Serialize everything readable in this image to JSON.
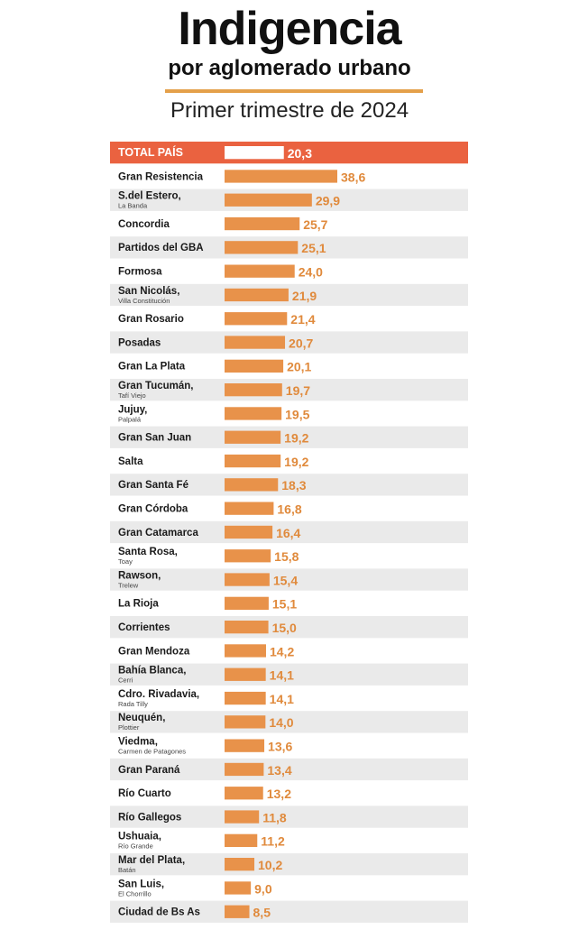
{
  "header": {
    "title": "Indigencia",
    "subtitle": "por aglomerado urbano",
    "period": "Primer trimestre de 2024"
  },
  "colors": {
    "bar": "#e8924a",
    "value": "#e08a3c",
    "total_row": "#ea6240",
    "row_shade": "#eaeaea"
  },
  "chart_data": {
    "type": "bar",
    "orientation": "horizontal",
    "title": "Indigencia",
    "subtitle": "por aglomerado urbano",
    "xlabel": "",
    "ylabel": "",
    "xlim": [
      0,
      40
    ],
    "grid": false,
    "legend": "none",
    "categories": [
      {
        "label": "TOTAL PAÍS",
        "sub": "",
        "total": true
      },
      {
        "label": "Gran Resistencia",
        "sub": ""
      },
      {
        "label": "S.del Estero,",
        "sub": "La Banda"
      },
      {
        "label": "Concordia",
        "sub": ""
      },
      {
        "label": "Partidos del GBA",
        "sub": ""
      },
      {
        "label": "Formosa",
        "sub": ""
      },
      {
        "label": "San Nicolás,",
        "sub": "Villa Constitución"
      },
      {
        "label": "Gran Rosario",
        "sub": ""
      },
      {
        "label": "Posadas",
        "sub": ""
      },
      {
        "label": "Gran La Plata",
        "sub": ""
      },
      {
        "label": "Gran Tucumán,",
        "sub": "Tafí Viejo"
      },
      {
        "label": "Jujuy,",
        "sub": "Palpalá"
      },
      {
        "label": "Gran San Juan",
        "sub": ""
      },
      {
        "label": "Salta",
        "sub": ""
      },
      {
        "label": "Gran Santa Fé",
        "sub": ""
      },
      {
        "label": "Gran Córdoba",
        "sub": ""
      },
      {
        "label": "Gran Catamarca",
        "sub": ""
      },
      {
        "label": "Santa Rosa,",
        "sub": "Toay"
      },
      {
        "label": "Rawson,",
        "sub": "Trelew"
      },
      {
        "label": "La Rioja",
        "sub": ""
      },
      {
        "label": "Corrientes",
        "sub": ""
      },
      {
        "label": "Gran Mendoza",
        "sub": ""
      },
      {
        "label": "Bahía Blanca,",
        "sub": "Cerri"
      },
      {
        "label": "Cdro. Rivadavia,",
        "sub": "Rada Tilly"
      },
      {
        "label": "Neuquén,",
        "sub": "Plottier"
      },
      {
        "label": "Viedma,",
        "sub": "Carmen de Patagones"
      },
      {
        "label": "Gran Paraná",
        "sub": ""
      },
      {
        "label": "Río Cuarto",
        "sub": ""
      },
      {
        "label": "Río Gallegos",
        "sub": ""
      },
      {
        "label": "Ushuaia,",
        "sub": "Río Grande"
      },
      {
        "label": "Mar del Plata,",
        "sub": "Batán"
      },
      {
        "label": "San Luis,",
        "sub": "El Chorrillo"
      },
      {
        "label": "Ciudad de Bs As",
        "sub": ""
      }
    ],
    "values": [
      20.3,
      38.6,
      29.9,
      25.7,
      25.1,
      24.0,
      21.9,
      21.4,
      20.7,
      20.1,
      19.7,
      19.5,
      19.2,
      19.2,
      18.3,
      16.8,
      16.4,
      15.8,
      15.4,
      15.1,
      15.0,
      14.2,
      14.1,
      14.1,
      14.0,
      13.6,
      13.4,
      13.2,
      11.8,
      11.2,
      10.2,
      9.0,
      8.5
    ],
    "value_labels": [
      "20,3",
      "38,6",
      "29,9",
      "25,7",
      "25,1",
      "24,0",
      "21,9",
      "21,4",
      "20,7",
      "20,1",
      "19,7",
      "19,5",
      "19,2",
      "19,2",
      "18,3",
      "16,8",
      "16,4",
      "15,8",
      "15,4",
      "15,1",
      "15,0",
      "14,2",
      "14,1",
      "14,1",
      "14,0",
      "13,6",
      "13,4",
      "13,2",
      "11,8",
      "11,2",
      "10,2",
      "9,0",
      "8,5"
    ]
  }
}
